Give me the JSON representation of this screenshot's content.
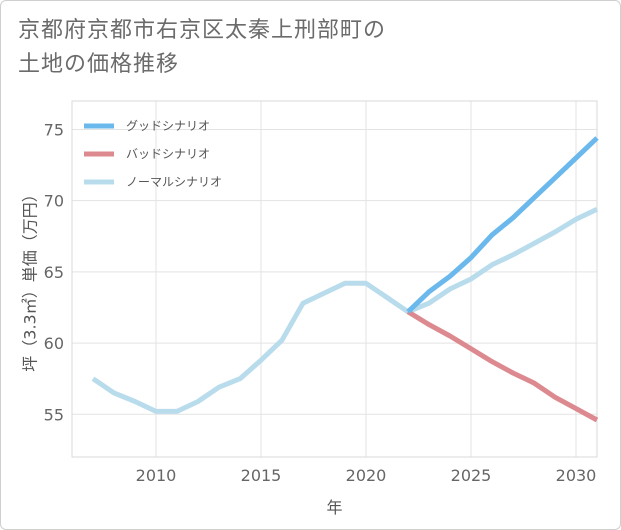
{
  "title_lines": [
    "京都府京都市右京区太秦上刑部町の",
    "土地の価格推移"
  ],
  "chart_data": {
    "type": "line",
    "title": "京都府京都市右京区太秦上刑部町の土地の価格推移",
    "xlabel": "年",
    "ylabel": "坪（3.3㎡）単価（万円）",
    "xlim": [
      2006,
      2031
    ],
    "ylim": [
      52,
      77
    ],
    "xticks": [
      2010,
      2015,
      2020,
      2025,
      2030
    ],
    "yticks": [
      55,
      60,
      65,
      70,
      75
    ],
    "grid": true,
    "legend_position": "top-left",
    "series": [
      {
        "name": "グッドシナリオ",
        "color": "#6bb8ec",
        "x": [
          2022,
          2023,
          2024,
          2025,
          2026,
          2027,
          2028,
          2029,
          2030,
          2031
        ],
        "y": [
          62.2,
          63.6,
          64.7,
          66.0,
          67.6,
          68.8,
          70.2,
          71.6,
          73.0,
          74.4
        ]
      },
      {
        "name": "バッドシナリオ",
        "color": "#dc8a8f",
        "x": [
          2022,
          2023,
          2024,
          2025,
          2026,
          2027,
          2028,
          2029,
          2030,
          2031
        ],
        "y": [
          62.2,
          61.3,
          60.5,
          59.6,
          58.7,
          57.9,
          57.2,
          56.2,
          55.4,
          54.6
        ]
      },
      {
        "name": "ノーマルシナリオ",
        "color": "#b9dcec",
        "x": [
          2007,
          2008,
          2009,
          2010,
          2011,
          2012,
          2013,
          2014,
          2015,
          2016,
          2017,
          2018,
          2019,
          2020,
          2021,
          2022,
          2023,
          2024,
          2025,
          2026,
          2027,
          2028,
          2029,
          2030,
          2031
        ],
        "y": [
          57.5,
          56.5,
          55.9,
          55.2,
          55.2,
          55.9,
          56.9,
          57.5,
          58.8,
          60.2,
          62.8,
          63.5,
          64.2,
          64.2,
          63.2,
          62.2,
          62.8,
          63.8,
          64.5,
          65.5,
          66.2,
          67.0,
          67.8,
          68.7,
          69.4
        ]
      }
    ]
  }
}
